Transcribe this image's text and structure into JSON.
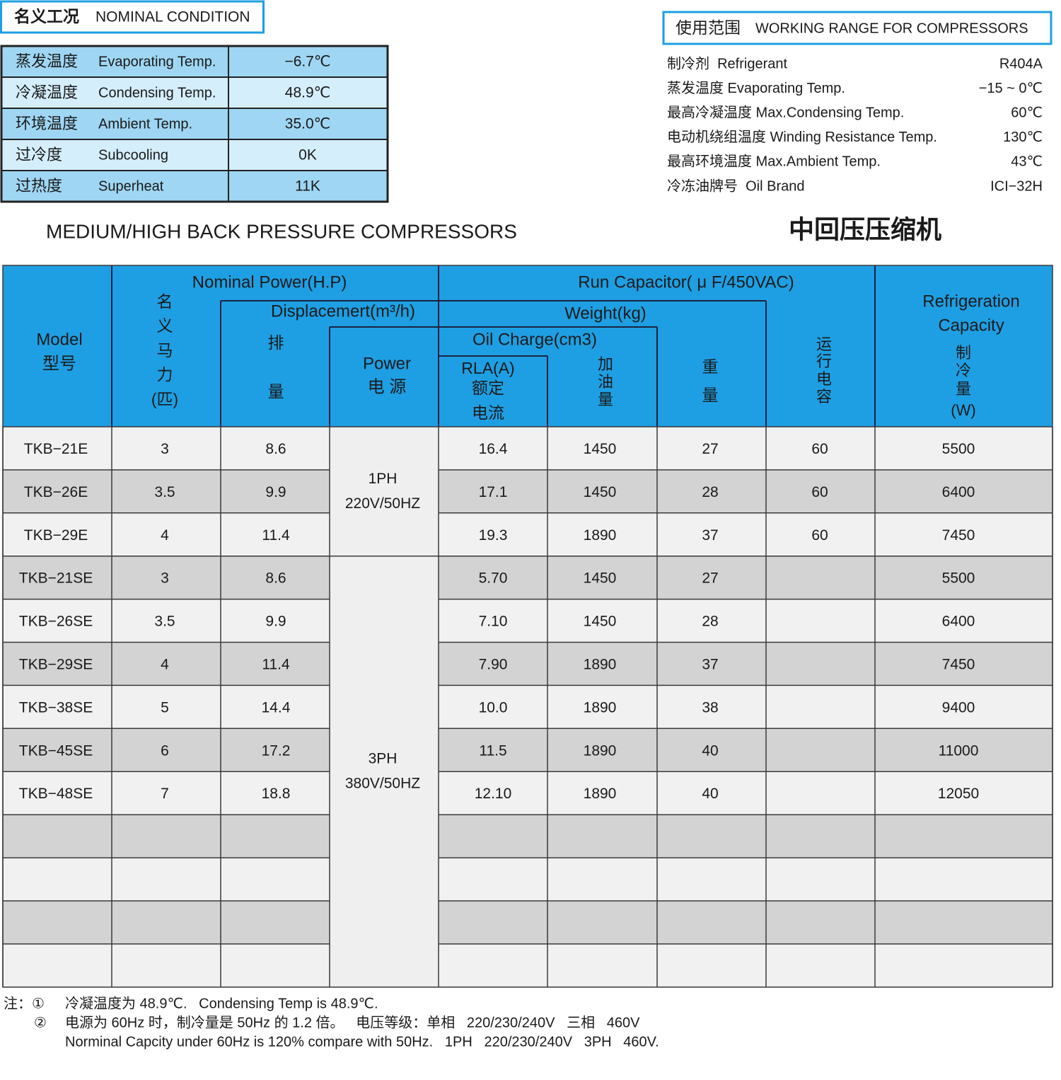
{
  "nominal": {
    "title_cn": "名义工况",
    "title_en": "NOMINAL CONDITION",
    "rows": [
      [
        "蒸发温度",
        "Evaporating Temp.",
        "−6.7℃"
      ],
      [
        "冷凝温度",
        "Condensing Temp.",
        "48.9℃"
      ],
      [
        "环境温度",
        "Ambient Temp.",
        "35.0℃"
      ],
      [
        "过冷度",
        "Subcooling",
        "0K"
      ],
      [
        "过热度",
        "Superheat",
        "11K"
      ]
    ]
  },
  "working_range": {
    "title_cn": "使用范围",
    "title_en": "WORKING RANGE FOR COMPRESSORS",
    "rows": [
      [
        "制冷剂  Refrigerant",
        "R404A"
      ],
      [
        "蒸发温度 Evaporating Temp.",
        "−15 ~ 0℃"
      ],
      [
        "最高冷凝温度 Max.Condensing Temp.",
        "60℃"
      ],
      [
        "电动机绕组温度 Winding Resistance Temp.",
        "130℃"
      ],
      [
        "最高环境温度 Max.Ambient Temp.",
        "43℃"
      ],
      [
        "冷冻油牌号  Oil Brand",
        "ICI−32H"
      ]
    ]
  },
  "heading_en": "MEDIUM/HIGH BACK PRESSURE COMPRESSORS",
  "heading_cn": "中回压压缩机",
  "table": {
    "header": {
      "model": [
        "Model",
        "型号"
      ],
      "hp_label": "Nominal Power(H.P)",
      "hp_cn": [
        "名",
        "义",
        "马",
        "力",
        "(匹)"
      ],
      "disp_label": "Displacemert(m³/h)",
      "disp_cn": [
        "排",
        "量"
      ],
      "power": [
        "Power",
        "电 源"
      ],
      "cap_label": "Run Capacitor( μ F/450VAC)",
      "weight_label": "Weight(kg)",
      "oil_label": "Oil Charge(cm3)",
      "rla": [
        "RLA(A)",
        "额定",
        "电流"
      ],
      "oil_cn": [
        "加",
        "油",
        "量"
      ],
      "weight_cn": [
        "重",
        "量"
      ],
      "cap_cn": [
        "运",
        "行",
        "电",
        "容"
      ],
      "refrig": [
        "Refrigeration",
        "Capacity"
      ],
      "refrig_cn": [
        "制",
        "冷",
        "量",
        "(W)"
      ]
    },
    "power_groups": [
      [
        "1PH",
        "220V/50HZ"
      ],
      [
        "3PH",
        "380V/50HZ"
      ]
    ],
    "rows": [
      [
        "TKB−21E",
        "3",
        "8.6",
        "16.4",
        "1450",
        "27",
        "60",
        "5500"
      ],
      [
        "TKB−26E",
        "3.5",
        "9.9",
        "17.1",
        "1450",
        "28",
        "60",
        "6400"
      ],
      [
        "TKB−29E",
        "4",
        "11.4",
        "19.3",
        "1890",
        "37",
        "60",
        "7450"
      ],
      [
        "TKB−21SE",
        "3",
        "8.6",
        "5.70",
        "1450",
        "27",
        null,
        "5500"
      ],
      [
        "TKB−26SE",
        "3.5",
        "9.9",
        "7.10",
        "1450",
        "28",
        null,
        "6400"
      ],
      [
        "TKB−29SE",
        "4",
        "11.4",
        "7.90",
        "1890",
        "37",
        null,
        "7450"
      ],
      [
        "TKB−38SE",
        "5",
        "14.4",
        "10.0",
        "1890",
        "38",
        null,
        "9400"
      ],
      [
        "TKB−45SE",
        "6",
        "17.2",
        "11.5",
        "1890",
        "40",
        null,
        "11000"
      ],
      [
        "TKB−48SE",
        "7",
        "18.8",
        "12.10",
        "1890",
        "40",
        null,
        "12050"
      ]
    ]
  },
  "notes": [
    {
      "marker": "注：①",
      "lines": [
        "冷凝温度为 48.9℃.   Condensing Temp is 48.9℃."
      ]
    },
    {
      "marker": "②",
      "lines": [
        "电源为 60Hz 时，制冷量是 50Hz 的 1.2 倍。   电压等级：单相   220/230/240V   三相   460V",
        "Norminal Capcity under 60Hz is 120% compare with 50Hz.   1PH   220/230/240V   3PH   460V."
      ]
    }
  ]
}
